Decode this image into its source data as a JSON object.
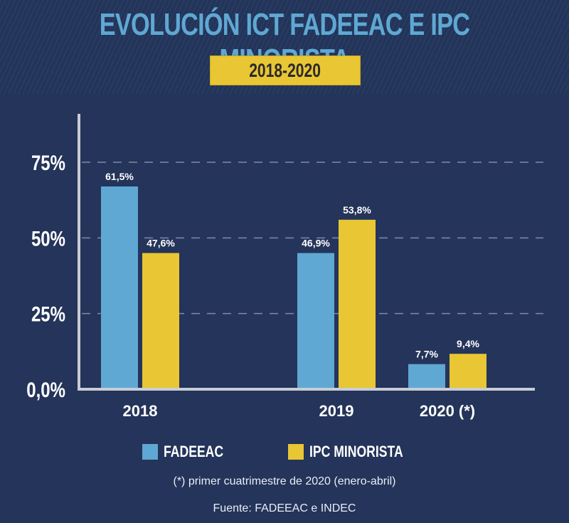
{
  "colors": {
    "background": "#24345a",
    "title": "#5fa8d3",
    "fadeeac": "#5fa8d3",
    "ipc": "#e8c634",
    "axis": "#c9ccd4",
    "text": "#ffffff"
  },
  "chart_data": {
    "type": "bar",
    "title": "EVOLUCIÓN ICT FADEEAC E IPC MINORISTA",
    "subtitle": "2018-2020",
    "categories": [
      "2018",
      "2019",
      "2020 (*)"
    ],
    "series": [
      {
        "name": "FADEEAC",
        "values": [
          61.5,
          46.9,
          7.7
        ],
        "labels": [
          "61,5%",
          "46,9%",
          "7,7%"
        ],
        "color": "#5fa8d3"
      },
      {
        "name": "IPC MINORISTA",
        "values": [
          47.6,
          53.8,
          9.4
        ],
        "labels": [
          "47,6%",
          "53,8%",
          "9,4%"
        ],
        "color": "#e8c634"
      }
    ],
    "xlabel": "",
    "ylabel": "",
    "ylim": [
      0,
      75
    ],
    "yticks": [
      0,
      25,
      50,
      75
    ],
    "ytick_labels": [
      "0,0%",
      "25%",
      "50%",
      "75%"
    ],
    "grid": "horizontal-dashed",
    "legend": "bottom-center",
    "note": "(*) primer cuatrimestre de 2020 (enero-abril)",
    "source": "Fuente: FADEEAC e INDEC"
  }
}
